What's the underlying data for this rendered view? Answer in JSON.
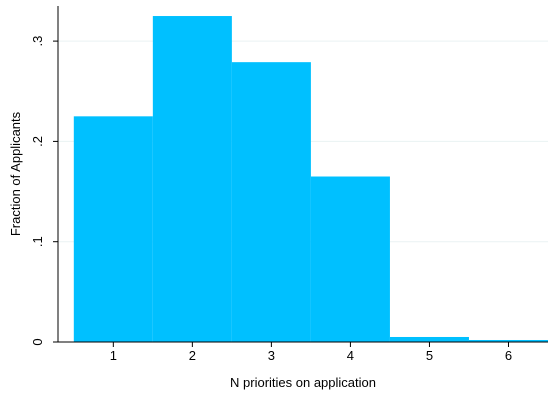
{
  "chart_data": {
    "type": "bar",
    "title": "",
    "xlabel": "N priorities on application",
    "ylabel": "Fraction of Applicants",
    "x": [
      1,
      2,
      3,
      4,
      5,
      6
    ],
    "bin_width": 1,
    "values": [
      0.225,
      0.325,
      0.279,
      0.165,
      0.005,
      0.002
    ],
    "xlim": [
      0.3,
      6.5
    ],
    "ylim": [
      0,
      0.335
    ],
    "xticks": [
      1,
      2,
      3,
      4,
      5,
      6
    ],
    "xtick_labels": [
      "1",
      "2",
      "3",
      "4",
      "5",
      "6"
    ],
    "yticks": [
      0,
      0.1,
      0.2,
      0.3
    ],
    "ytick_labels": [
      "0",
      ".1",
      ".2",
      ".3"
    ],
    "grid": "horizontal",
    "legend": "none",
    "colors": {
      "bar": "#00C0FF",
      "grid": "#EAF2F3",
      "axis": "#000000",
      "background": "#FFFFFF"
    }
  }
}
